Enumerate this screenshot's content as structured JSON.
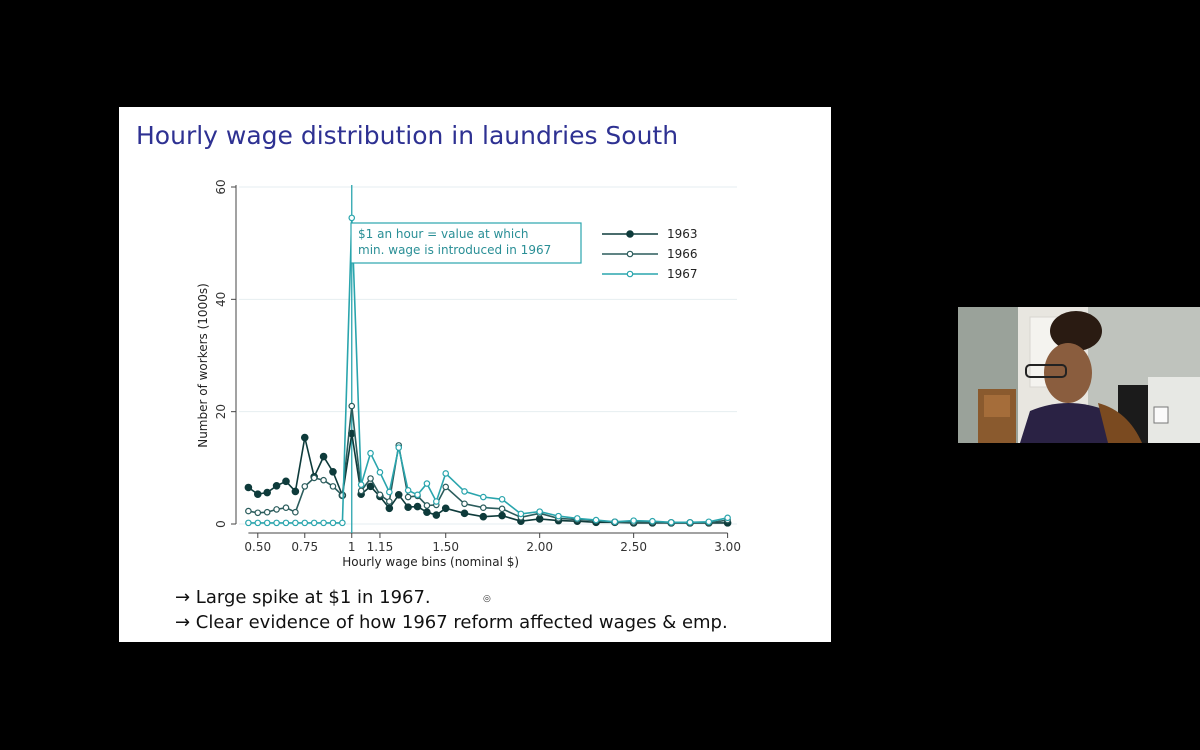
{
  "slide": {
    "title": "Hourly wage distribution in laundries South",
    "bullets": [
      "→ Large spike at $1 in 1967.",
      "→ Clear evidence of how 1967 reform affected wages & emp."
    ]
  },
  "colors": {
    "title": "#2e3192",
    "series_1963": "#0e3b3b",
    "series_1966": "#2b5c5c",
    "series_1967": "#2aa5ad",
    "vline": "#2aa5ad",
    "grid": "#e6eef0"
  },
  "chart_data": {
    "type": "line",
    "xlabel": "Hourly wage bins (nominal $)",
    "ylabel": "Number of workers (1000s)",
    "xlim": [
      0.4,
      3.05
    ],
    "ylim": [
      0,
      60
    ],
    "x_ticks": [
      {
        "value": 0.5,
        "label": "0.50"
      },
      {
        "value": 0.75,
        "label": "0.75"
      },
      {
        "value": 1.0,
        "label": "1"
      },
      {
        "value": 1.15,
        "label": "1.15"
      },
      {
        "value": 1.5,
        "label": "1.50"
      },
      {
        "value": 2.0,
        "label": "2.00"
      },
      {
        "value": 2.5,
        "label": "2.50"
      },
      {
        "value": 3.0,
        "label": "3.00"
      }
    ],
    "y_ticks": [
      0,
      20,
      40,
      60
    ],
    "grid": true,
    "legend_position": "top-right",
    "vline": {
      "x": 1.0
    },
    "annotation": {
      "lines": [
        "$1 an hour = value at which",
        "min. wage is introduced in 1967"
      ]
    },
    "series": [
      {
        "name": "1963",
        "marker": "filled",
        "x": [
          0.45,
          0.5,
          0.55,
          0.6,
          0.65,
          0.7,
          0.75,
          0.8,
          0.85,
          0.9,
          0.95,
          1.0,
          1.05,
          1.1,
          1.15,
          1.2,
          1.25,
          1.3,
          1.35,
          1.4,
          1.45,
          1.5,
          1.6,
          1.7,
          1.8,
          1.9,
          2.0,
          2.1,
          2.2,
          2.3,
          2.4,
          2.5,
          2.6,
          2.7,
          2.8,
          2.9,
          3.0
        ],
        "values": [
          6.5,
          5.3,
          5.6,
          6.8,
          7.6,
          5.8,
          15.4,
          8.4,
          12.0,
          9.3,
          5.1,
          16.1,
          5.3,
          6.7,
          4.9,
          2.8,
          5.2,
          3.0,
          3.1,
          2.1,
          1.6,
          2.8,
          1.9,
          1.3,
          1.5,
          0.5,
          0.9,
          0.6,
          0.5,
          0.3,
          0.3,
          0.2,
          0.2,
          0.2,
          0.2,
          0.2,
          0.2
        ]
      },
      {
        "name": "1966",
        "marker": "hollow",
        "x": [
          0.45,
          0.5,
          0.55,
          0.6,
          0.65,
          0.7,
          0.75,
          0.8,
          0.85,
          0.9,
          0.95,
          1.0,
          1.05,
          1.1,
          1.15,
          1.2,
          1.25,
          1.3,
          1.35,
          1.4,
          1.45,
          1.5,
          1.6,
          1.7,
          1.8,
          1.9,
          2.0,
          2.1,
          2.2,
          2.3,
          2.4,
          2.5,
          2.6,
          2.7,
          2.8,
          2.9,
          3.0
        ],
        "values": [
          2.3,
          2.0,
          2.1,
          2.6,
          2.9,
          2.1,
          6.7,
          8.2,
          7.8,
          6.7,
          5.1,
          21.0,
          5.9,
          8.1,
          5.2,
          4.0,
          14.0,
          4.8,
          5.0,
          3.3,
          3.4,
          6.6,
          3.6,
          2.9,
          2.7,
          1.2,
          1.9,
          1.0,
          0.8,
          0.6,
          0.3,
          0.3,
          0.3,
          0.2,
          0.2,
          0.2,
          0.7
        ]
      },
      {
        "name": "1967",
        "marker": "hollow",
        "x": [
          0.45,
          0.5,
          0.55,
          0.6,
          0.65,
          0.7,
          0.75,
          0.8,
          0.85,
          0.9,
          0.95,
          1.0,
          1.05,
          1.1,
          1.15,
          1.2,
          1.25,
          1.3,
          1.35,
          1.4,
          1.45,
          1.5,
          1.6,
          1.7,
          1.8,
          1.9,
          2.0,
          2.1,
          2.2,
          2.3,
          2.4,
          2.5,
          2.6,
          2.7,
          2.8,
          2.9,
          3.0
        ],
        "values": [
          0.2,
          0.2,
          0.2,
          0.2,
          0.2,
          0.2,
          0.2,
          0.2,
          0.2,
          0.2,
          0.2,
          54.5,
          7.0,
          12.6,
          9.2,
          5.7,
          13.6,
          6.0,
          5.2,
          7.2,
          4.0,
          9.0,
          5.8,
          4.8,
          4.4,
          1.8,
          2.2,
          1.4,
          1.0,
          0.7,
          0.4,
          0.6,
          0.5,
          0.3,
          0.3,
          0.4,
          1.1
        ]
      }
    ]
  }
}
